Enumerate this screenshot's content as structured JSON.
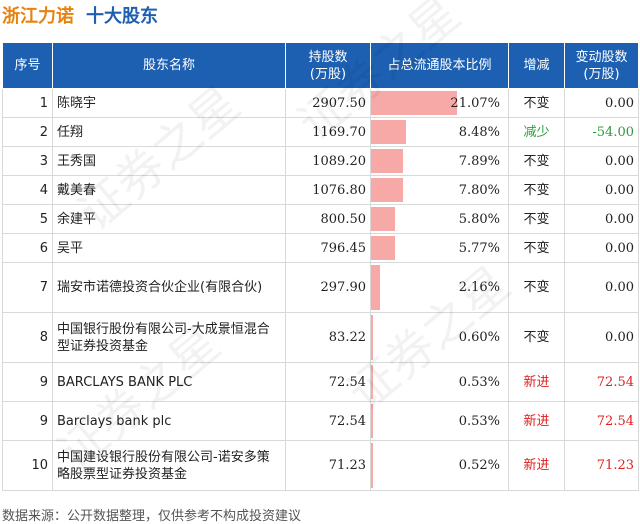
{
  "header": {
    "company": "浙江力诺",
    "subtitle": "十大股东"
  },
  "table": {
    "columns": [
      "序号",
      "股东名称",
      "持股数\n(万股)",
      "占总流通股本比例",
      "增减",
      "变动股数\n(万股)"
    ],
    "rows": [
      {
        "rank": "1",
        "name": "陈晓宇",
        "shares": "2907.50",
        "pct": "21.07%",
        "pct_value": 21.07,
        "change": "不变",
        "delta": "0.00"
      },
      {
        "rank": "2",
        "name": "任翔",
        "shares": "1169.70",
        "pct": "8.48%",
        "pct_value": 8.48,
        "change": "减少",
        "delta": "-54.00"
      },
      {
        "rank": "3",
        "name": "王秀国",
        "shares": "1089.20",
        "pct": "7.89%",
        "pct_value": 7.89,
        "change": "不变",
        "delta": "0.00"
      },
      {
        "rank": "4",
        "name": "戴美春",
        "shares": "1076.80",
        "pct": "7.80%",
        "pct_value": 7.8,
        "change": "不变",
        "delta": "0.00"
      },
      {
        "rank": "5",
        "name": "余建平",
        "shares": "800.50",
        "pct": "5.80%",
        "pct_value": 5.8,
        "change": "不变",
        "delta": "0.00"
      },
      {
        "rank": "6",
        "name": "吴平",
        "shares": "796.45",
        "pct": "5.77%",
        "pct_value": 5.77,
        "change": "不变",
        "delta": "0.00"
      },
      {
        "rank": "7",
        "name": "瑞安市诺德投资合伙企业(有限合伙)",
        "shares": "297.90",
        "pct": "2.16%",
        "pct_value": 2.16,
        "change": "不变",
        "delta": "0.00"
      },
      {
        "rank": "8",
        "name": "中国银行股份有限公司-大成景恒混合型证券投资基金",
        "shares": "83.22",
        "pct": "0.60%",
        "pct_value": 0.6,
        "change": "不变",
        "delta": "0.00"
      },
      {
        "rank": "9",
        "name": "BARCLAYS BANK PLC",
        "shares": "72.54",
        "pct": "0.53%",
        "pct_value": 0.53,
        "change": "新进",
        "delta": "72.54"
      },
      {
        "rank": "9",
        "name": "Barclays bank plc",
        "shares": "72.54",
        "pct": "0.53%",
        "pct_value": 0.53,
        "change": "新进",
        "delta": "72.54"
      },
      {
        "rank": "10",
        "name": "中国建设银行股份有限公司-诺安多策略股票型证券投资基金",
        "shares": "71.23",
        "pct": "0.52%",
        "pct_value": 0.52,
        "change": "新进",
        "delta": "71.23"
      }
    ]
  },
  "colors": {
    "header_bg": "#1d5fb1",
    "bar": "#f7a9a8",
    "decrease": "#2e9a3e",
    "new": "#e02020",
    "company": "#e8820f",
    "subtitle": "#1f5fb0"
  },
  "watermark": "证券之星",
  "footer": "数据来源：公开数据整理，仅供参考不构成投资建议"
}
